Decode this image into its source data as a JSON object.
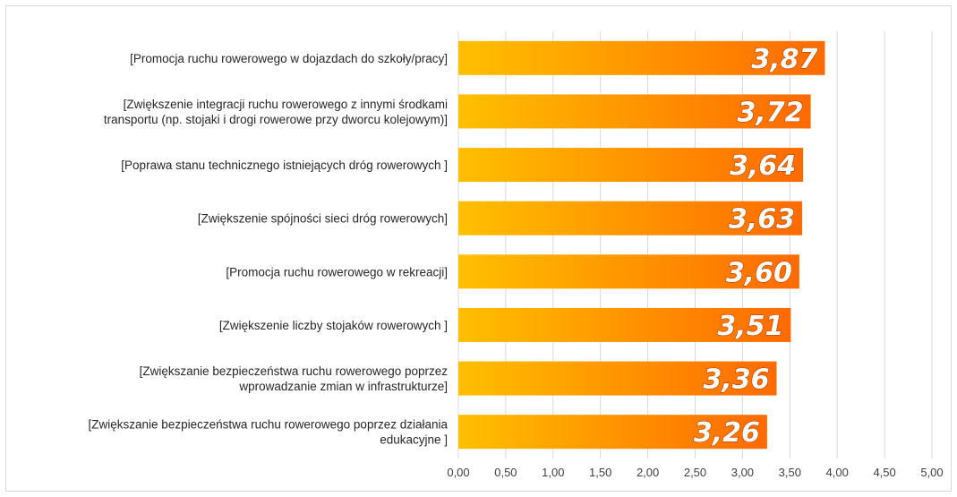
{
  "chart_data": {
    "type": "bar",
    "orientation": "horizontal",
    "categories": [
      "[Promocja ruchu rowerowego w dojazdach do szkoły/pracy]",
      "[Zwiększenie integracji ruchu rowerowego z innymi środkami transportu (np. stojaki i drogi rowerowe przy dworcu kolejowym)]",
      "[Poprawa stanu technicznego istniejących dróg rowerowych ]",
      "[Zwiększenie spójności sieci dróg rowerowych]",
      "[Promocja ruchu rowerowego w rekreacji]",
      "[Zwiększenie liczby stojaków rowerowych ]",
      "[Zwiększanie bezpieczeństwa ruchu rowerowego poprzez wprowadzanie zmian w infrastrukturze]",
      "[Zwiększanie bezpieczeństwa ruchu rowerowego poprzez działania edukacyjne ]"
    ],
    "category_lines": [
      [
        "[Promocja ruchu rowerowego w dojazdach do szkoły/pracy]"
      ],
      [
        "[Zwiększenie integracji ruchu rowerowego z innymi środkami",
        "transportu (np. stojaki i drogi rowerowe przy dworcu kolejowym)]"
      ],
      [
        "[Poprawa stanu technicznego istniejących dróg rowerowych ]"
      ],
      [
        "[Zwiększenie spójności sieci dróg rowerowych]"
      ],
      [
        "[Promocja ruchu rowerowego w rekreacji]"
      ],
      [
        "[Zwiększenie liczby stojaków rowerowych ]"
      ],
      [
        "[Zwiększanie bezpieczeństwa ruchu rowerowego poprzez",
        "wprowadzanie zmian w infrastrukturze]"
      ],
      [
        "[Zwiększanie bezpieczeństwa ruchu rowerowego poprzez działania",
        "edukacyjne ]"
      ]
    ],
    "values": [
      3.87,
      3.72,
      3.64,
      3.63,
      3.6,
      3.51,
      3.36,
      3.26
    ],
    "data_labels": [
      "3,87",
      "3,72",
      "3,64",
      "3,63",
      "3,60",
      "3,51",
      "3,36",
      "3,26"
    ],
    "xlim": [
      0,
      5
    ],
    "xticks": [
      0,
      0.5,
      1,
      1.5,
      2,
      2.5,
      3,
      3.5,
      4,
      4.5,
      5
    ],
    "xtick_labels": [
      "0,00",
      "0,50",
      "1,00",
      "1,50",
      "2,00",
      "2,50",
      "3,00",
      "3,50",
      "4,00",
      "4,50",
      "5,00"
    ],
    "title": "",
    "xlabel": "",
    "ylabel": "",
    "grid": "vertical",
    "legend": "none",
    "colors": {
      "bar_gradient_start": "#ffc000",
      "bar_gradient_end": "#ff6a00",
      "gridline": "#d9d9d9",
      "label_text": "#262626",
      "data_label": "#ffffff"
    }
  }
}
